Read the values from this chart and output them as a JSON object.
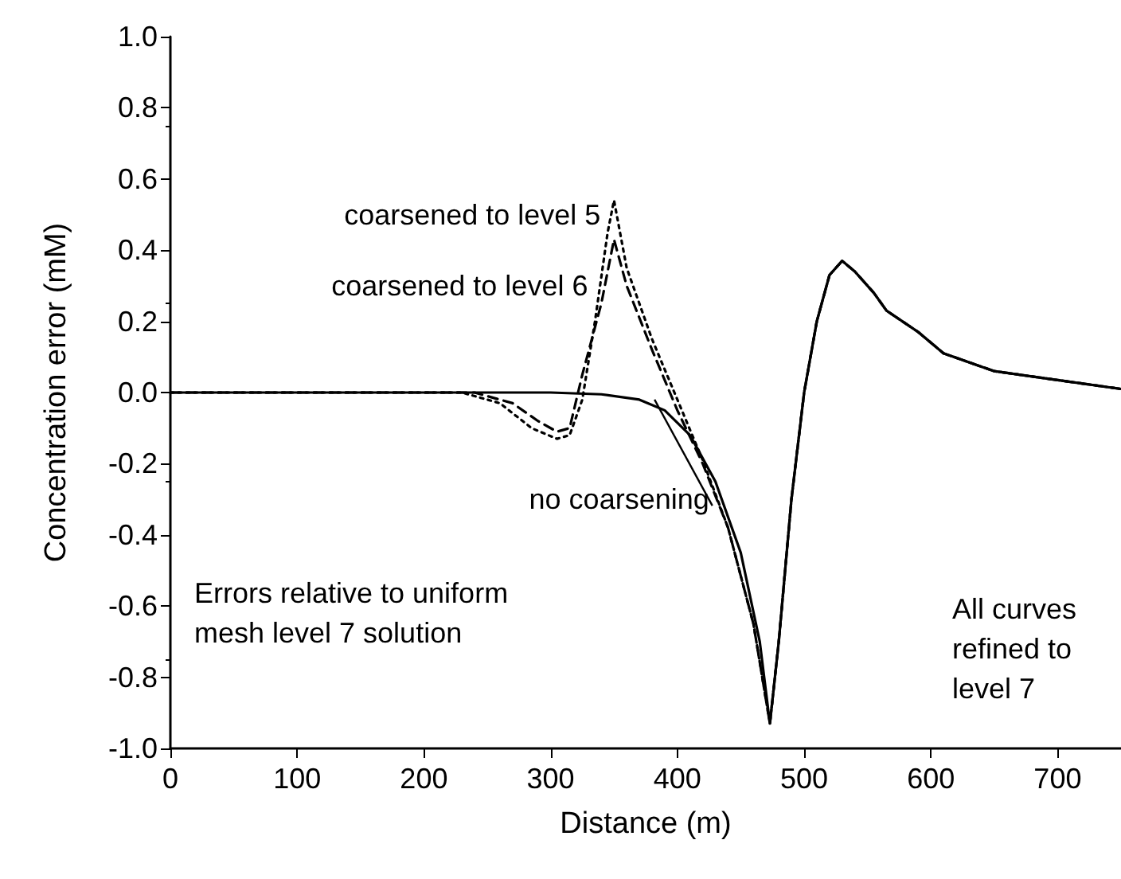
{
  "chart_data": {
    "type": "line",
    "xlabel": "Distance (m)",
    "ylabel": "Concentration error (mM)",
    "xlim": [
      0,
      750
    ],
    "xticks": [
      0,
      100,
      200,
      300,
      400,
      500,
      600,
      700
    ],
    "ylim": [
      -1.0,
      1.0
    ],
    "yticks": [
      {
        "value": -1.0,
        "label": "-1.0"
      },
      {
        "value": -0.8,
        "label": "-0.8"
      },
      {
        "value": -0.6,
        "label": "-0.6"
      },
      {
        "value": -0.4,
        "label": "-0.4"
      },
      {
        "value": -0.2,
        "label": "-0.2"
      },
      {
        "value": 0,
        "label": "0.0"
      },
      {
        "value": 0.2,
        "label": "0.2"
      },
      {
        "value": 0.4,
        "label": "0.4"
      },
      {
        "value": 0.6,
        "label": "0.6"
      },
      {
        "value": 0.8,
        "label": "0.8"
      },
      {
        "value": 1.0,
        "label": "1.0"
      }
    ],
    "grid": false,
    "legend": false,
    "marker": "none",
    "annotations": [
      "Errors relative to uniform mesh level 7 solution",
      "All curves refined to level 7"
    ],
    "series": [
      {
        "name": "coarsened to level 5",
        "color": "#000000",
        "line_style": "dotted",
        "x": [
          0,
          230,
          260,
          285,
          305,
          315,
          325,
          335,
          345,
          350,
          360,
          380,
          400,
          420,
          440,
          460,
          473,
          480,
          490,
          500,
          510,
          520,
          530,
          540,
          555,
          565,
          590,
          610,
          650,
          700,
          750
        ],
        "values": [
          0,
          0,
          -0.03,
          -0.1,
          -0.13,
          -0.12,
          -0.02,
          0.2,
          0.45,
          0.54,
          0.35,
          0.15,
          -0.02,
          -0.19,
          -0.38,
          -0.65,
          -0.93,
          -0.7,
          -0.3,
          0.0,
          0.2,
          0.33,
          0.37,
          0.34,
          0.28,
          0.23,
          0.17,
          0.11,
          0.06,
          0.035,
          0.01
        ]
      },
      {
        "name": "coarsened to level 6",
        "color": "#000000",
        "line_style": "dashed",
        "x": [
          0,
          240,
          270,
          290,
          305,
          315,
          325,
          340,
          350,
          360,
          380,
          400,
          420,
          440,
          460,
          473,
          480,
          490,
          500,
          510,
          520,
          530,
          540,
          555,
          565,
          590,
          610,
          650,
          700,
          750
        ],
        "values": [
          0,
          0,
          -0.03,
          -0.08,
          -0.11,
          -0.1,
          0.05,
          0.25,
          0.43,
          0.3,
          0.12,
          -0.05,
          -0.2,
          -0.38,
          -0.65,
          -0.93,
          -0.7,
          -0.3,
          0.0,
          0.2,
          0.33,
          0.37,
          0.34,
          0.28,
          0.23,
          0.17,
          0.11,
          0.06,
          0.035,
          0.01
        ]
      },
      {
        "name": "no coarsening",
        "color": "#000000",
        "line_style": "solid",
        "x": [
          0,
          250,
          300,
          340,
          370,
          390,
          410,
          430,
          450,
          465,
          473,
          480,
          490,
          500,
          510,
          520,
          530,
          540,
          555,
          565,
          590,
          610,
          650,
          700,
          750
        ],
        "values": [
          0,
          0,
          0,
          -0.005,
          -0.02,
          -0.05,
          -0.12,
          -0.25,
          -0.45,
          -0.7,
          -0.93,
          -0.7,
          -0.3,
          0.0,
          0.2,
          0.33,
          0.37,
          0.34,
          0.28,
          0.23,
          0.17,
          0.11,
          0.06,
          0.035,
          0.01
        ]
      }
    ]
  }
}
